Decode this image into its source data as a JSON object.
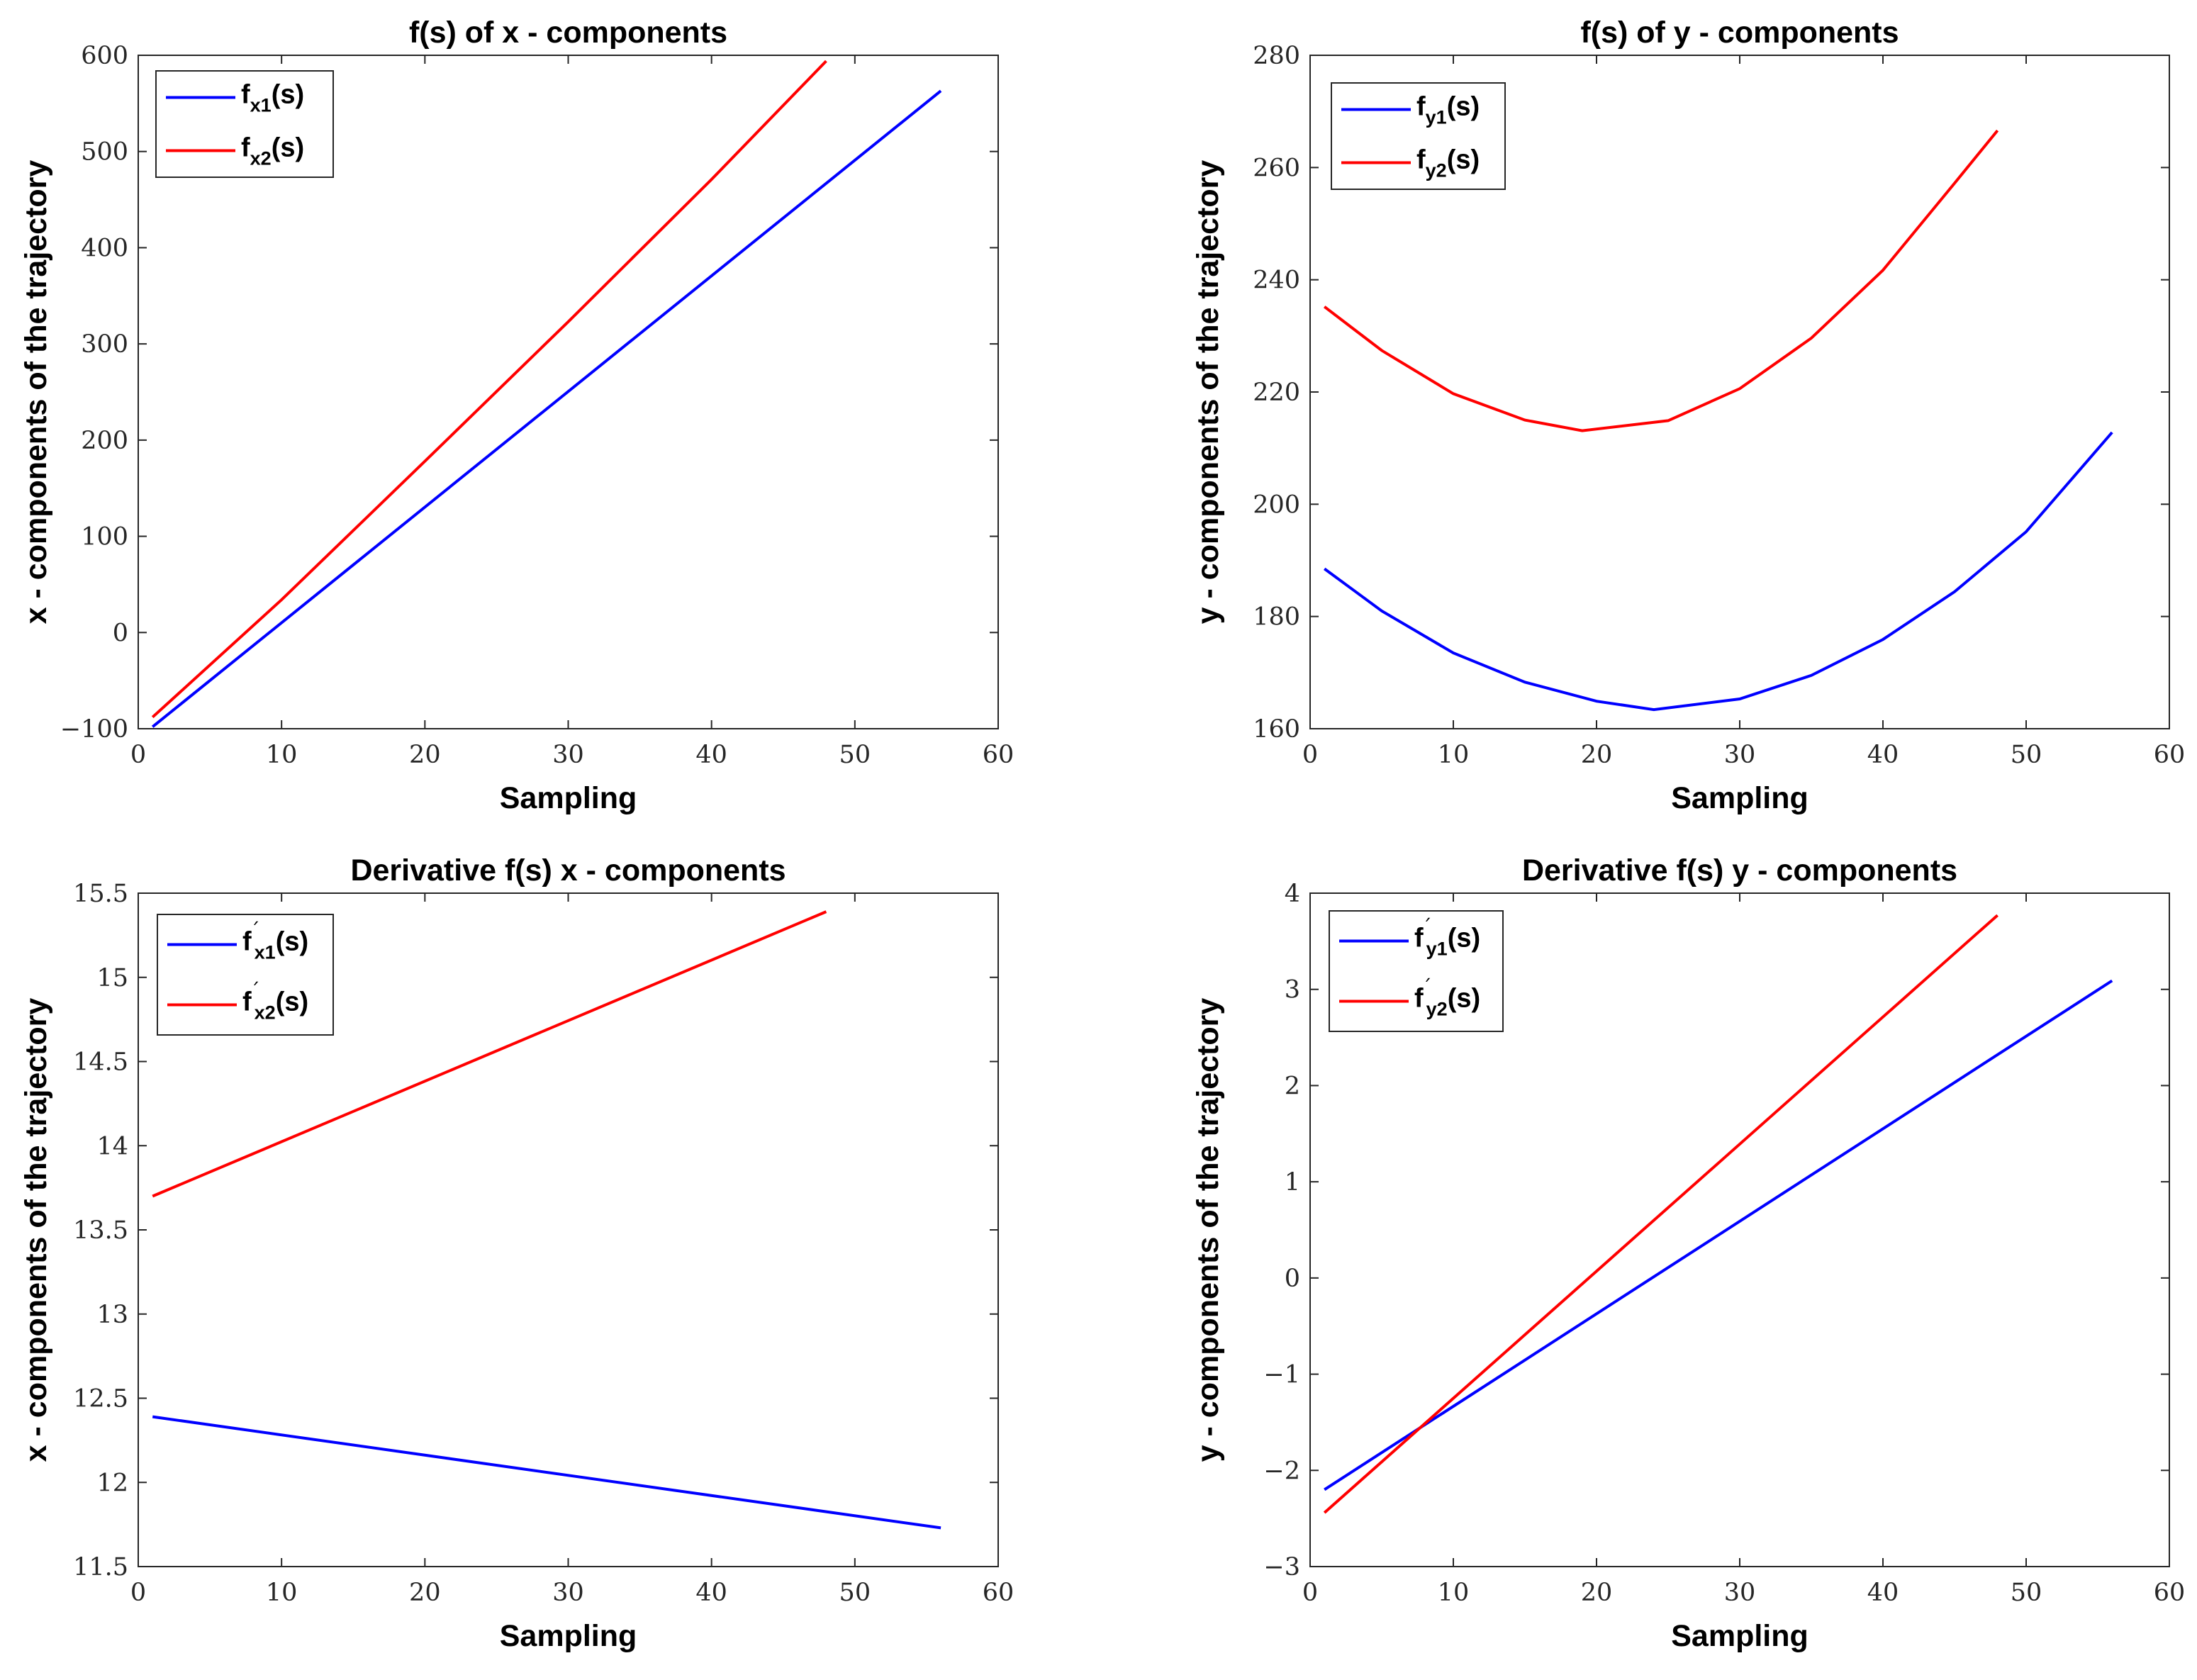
{
  "colors": {
    "series1": "#0000ff",
    "series2": "#ff0000",
    "axis": "#262626"
  },
  "chart_data": [
    {
      "type": "line",
      "title": "f(s) of x - components",
      "xlabel": "Sampling",
      "ylabel": "x - components of the trajectory",
      "xlim": [
        0,
        60
      ],
      "ylim": [
        -100,
        600
      ],
      "xticks": [
        0,
        10,
        20,
        30,
        40,
        50,
        60
      ],
      "xtick_labels": [
        "0",
        "10",
        "20",
        "30",
        "40",
        "50",
        "60"
      ],
      "yticks": [
        -100,
        0,
        100,
        200,
        300,
        400,
        500,
        600
      ],
      "ytick_labels": [
        "−100",
        "0",
        "100",
        "200",
        "300",
        "400",
        "500",
        "600"
      ],
      "legend_location": "top-left",
      "series": [
        {
          "name": "fx1(s)",
          "legend": {
            "base": "f",
            "sub": "x1",
            "suffix": "(s)",
            "prime": false
          },
          "color": "blue",
          "x": [
            1,
            56
          ],
          "y": [
            -98,
            563
          ]
        },
        {
          "name": "fx2(s)",
          "legend": {
            "base": "f",
            "sub": "x2",
            "suffix": "(s)",
            "prime": false
          },
          "color": "red",
          "x": [
            1,
            10,
            20,
            30,
            40,
            48
          ],
          "y": [
            -88,
            34,
            178,
            323,
            471,
            594
          ]
        }
      ]
    },
    {
      "type": "line",
      "title": "f(s) of y - components",
      "xlabel": "Sampling",
      "ylabel": "y - components of the trajectory",
      "xlim": [
        0,
        60
      ],
      "ylim": [
        160,
        280
      ],
      "xticks": [
        0,
        10,
        20,
        30,
        40,
        50,
        60
      ],
      "xtick_labels": [
        "0",
        "10",
        "20",
        "30",
        "40",
        "50",
        "60"
      ],
      "yticks": [
        160,
        180,
        200,
        220,
        240,
        260,
        280
      ],
      "ytick_labels": [
        "160",
        "180",
        "200",
        "220",
        "240",
        "260",
        "280"
      ],
      "legend_location": "top-left",
      "series": [
        {
          "name": "fy1(s)",
          "legend": {
            "base": "f",
            "sub": "y1",
            "suffix": "(s)",
            "prime": false
          },
          "color": "blue",
          "x": [
            1,
            5,
            10,
            15,
            20,
            24,
            30,
            35,
            40,
            45,
            50,
            56
          ],
          "y": [
            188.5,
            181.0,
            173.5,
            168.3,
            164.9,
            163.4,
            165.3,
            169.5,
            175.9,
            184.4,
            195.1,
            212.8
          ]
        },
        {
          "name": "fy2(s)",
          "legend": {
            "base": "f",
            "sub": "y2",
            "suffix": "(s)",
            "prime": false
          },
          "color": "red",
          "x": [
            1,
            5,
            10,
            15,
            19,
            25,
            30,
            35,
            40,
            45,
            48
          ],
          "y": [
            235.2,
            227.4,
            219.7,
            215.0,
            213.1,
            214.9,
            220.6,
            229.6,
            241.7,
            257.2,
            266.6
          ]
        }
      ]
    },
    {
      "type": "line",
      "title": "Derivative f(s) x - components",
      "xlabel": "Sampling",
      "ylabel": "x - components of the trajectory",
      "xlim": [
        0,
        60
      ],
      "ylim": [
        11.5,
        15.5
      ],
      "xticks": [
        0,
        10,
        20,
        30,
        40,
        50,
        60
      ],
      "xtick_labels": [
        "0",
        "10",
        "20",
        "30",
        "40",
        "50",
        "60"
      ],
      "yticks": [
        11.5,
        12,
        12.5,
        13,
        13.5,
        14,
        14.5,
        15,
        15.5
      ],
      "ytick_labels": [
        "11.5",
        "12",
        "12.5",
        "13",
        "13.5",
        "14",
        "14.5",
        "15",
        "15.5"
      ],
      "legend_location": "top-left",
      "series": [
        {
          "name": "f'x1(s)",
          "legend": {
            "base": "f",
            "sub": "x1",
            "suffix": "(s)",
            "prime": true
          },
          "color": "blue",
          "x": [
            1,
            56
          ],
          "y": [
            12.39,
            11.73
          ]
        },
        {
          "name": "f'x2(s)",
          "legend": {
            "base": "f",
            "sub": "x2",
            "suffix": "(s)",
            "prime": true
          },
          "color": "red",
          "x": [
            1,
            48
          ],
          "y": [
            13.7,
            15.39
          ]
        }
      ]
    },
    {
      "type": "line",
      "title": "Derivative f(s) y - components",
      "xlabel": "Sampling",
      "ylabel": "y - components of the trajectory",
      "xlim": [
        0,
        60
      ],
      "ylim": [
        -3,
        4
      ],
      "xticks": [
        0,
        10,
        20,
        30,
        40,
        50,
        60
      ],
      "xtick_labels": [
        "0",
        "10",
        "20",
        "30",
        "40",
        "50",
        "60"
      ],
      "yticks": [
        -3,
        -2,
        -1,
        0,
        1,
        2,
        3,
        4
      ],
      "ytick_labels": [
        "−3",
        "−2",
        "−1",
        "0",
        "1",
        "2",
        "3",
        "4"
      ],
      "legend_location": "top-left",
      "series": [
        {
          "name": "f'y1(s)",
          "legend": {
            "base": "f",
            "sub": "y1",
            "suffix": "(s)",
            "prime": true
          },
          "color": "blue",
          "x": [
            1,
            56
          ],
          "y": [
            -2.2,
            3.09
          ]
        },
        {
          "name": "f'y2(s)",
          "legend": {
            "base": "f",
            "sub": "y2",
            "suffix": "(s)",
            "prime": true
          },
          "color": "red",
          "x": [
            1,
            48
          ],
          "y": [
            -2.44,
            3.77
          ]
        }
      ]
    }
  ]
}
